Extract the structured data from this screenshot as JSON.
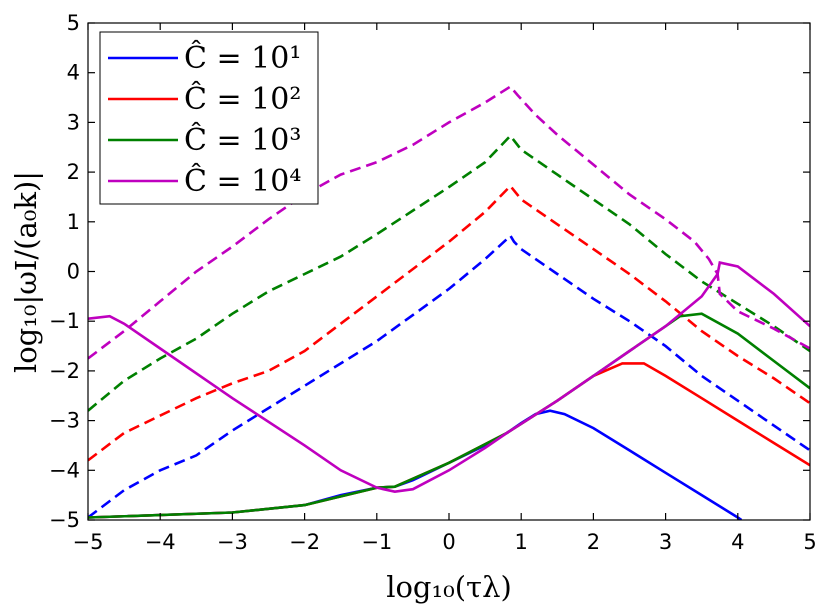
{
  "chart_data": {
    "type": "line",
    "title": "",
    "xlabel": "log₁₀(τλ)",
    "ylabel": "log₁₀|ωI/(a₀k)|",
    "xlim": [
      -5,
      5
    ],
    "ylim": [
      -5,
      5
    ],
    "xticks": [
      "−5",
      "−4",
      "−3",
      "−2",
      "−1",
      "0",
      "1",
      "2",
      "3",
      "4",
      "5"
    ],
    "yticks": [
      "−5",
      "−4",
      "−3",
      "−2",
      "−1",
      "0",
      "1",
      "2",
      "3",
      "4",
      "5"
    ],
    "grid": false,
    "legend_position": "top-left",
    "series": [
      {
        "name": "Ĉ = 10¹",
        "color": "#0000ff",
        "solid": [
          [
            -5,
            -4.95
          ],
          [
            -4,
            -4.9
          ],
          [
            -3,
            -4.85
          ],
          [
            -2,
            -4.7
          ],
          [
            -1.5,
            -4.5
          ],
          [
            -1,
            -4.35
          ],
          [
            -0.75,
            -4.33
          ],
          [
            -0.5,
            -4.2
          ],
          [
            0,
            -3.85
          ],
          [
            0.5,
            -3.5
          ],
          [
            0.8,
            -3.25
          ],
          [
            1,
            -3.05
          ],
          [
            1.2,
            -2.87
          ],
          [
            1.4,
            -2.8
          ],
          [
            1.6,
            -2.87
          ],
          [
            2,
            -3.15
          ],
          [
            2.5,
            -3.6
          ],
          [
            3,
            -4.05
          ],
          [
            3.5,
            -4.5
          ],
          [
            4,
            -4.95
          ],
          [
            4.05,
            -5
          ]
        ],
        "dashed": [
          [
            -5,
            -4.95
          ],
          [
            -4.5,
            -4.4
          ],
          [
            -4,
            -4.0
          ],
          [
            -3.5,
            -3.7
          ],
          [
            -3,
            -3.2
          ],
          [
            -2,
            -2.3
          ],
          [
            -1,
            -1.4
          ],
          [
            0,
            -0.35
          ],
          [
            0.5,
            0.25
          ],
          [
            0.8,
            0.65
          ],
          [
            0.85,
            0.72
          ],
          [
            0.9,
            0.6
          ],
          [
            1,
            0.45
          ],
          [
            1.5,
            -0.05
          ],
          [
            2,
            -0.55
          ],
          [
            2.5,
            -1.0
          ],
          [
            3,
            -1.5
          ],
          [
            3.5,
            -2.1
          ],
          [
            4,
            -2.6
          ],
          [
            4.5,
            -3.1
          ],
          [
            5,
            -3.6
          ]
        ]
      },
      {
        "name": "Ĉ = 10²",
        "color": "#ff0000",
        "solid": [
          [
            -5,
            -4.95
          ],
          [
            -3,
            -4.85
          ],
          [
            -2,
            -4.7
          ],
          [
            -1,
            -4.35
          ],
          [
            -0.75,
            -4.33
          ],
          [
            0,
            -3.85
          ],
          [
            0.8,
            -3.25
          ],
          [
            1.5,
            -2.6
          ],
          [
            2,
            -2.1
          ],
          [
            2.4,
            -1.85
          ],
          [
            2.7,
            -1.85
          ],
          [
            3,
            -2.1
          ],
          [
            3.5,
            -2.55
          ],
          [
            4,
            -3.0
          ],
          [
            4.5,
            -3.45
          ],
          [
            5,
            -3.9
          ]
        ],
        "dashed": [
          [
            -5,
            -3.8
          ],
          [
            -4.5,
            -3.25
          ],
          [
            -4,
            -2.9
          ],
          [
            -3.5,
            -2.55
          ],
          [
            -3,
            -2.25
          ],
          [
            -2.5,
            -2.0
          ],
          [
            -2,
            -1.6
          ],
          [
            -1,
            -0.5
          ],
          [
            0,
            0.6
          ],
          [
            0.5,
            1.2
          ],
          [
            0.85,
            1.72
          ],
          [
            1,
            1.45
          ],
          [
            1.5,
            0.95
          ],
          [
            2,
            0.45
          ],
          [
            2.5,
            -0.05
          ],
          [
            3,
            -0.6
          ],
          [
            3.5,
            -1.2
          ],
          [
            4,
            -1.7
          ],
          [
            4.5,
            -2.15
          ],
          [
            5,
            -2.65
          ]
        ]
      },
      {
        "name": "Ĉ = 10³",
        "color": "#008000",
        "solid": [
          [
            -5,
            -4.95
          ],
          [
            -3,
            -4.85
          ],
          [
            -2,
            -4.7
          ],
          [
            -1,
            -4.35
          ],
          [
            -0.75,
            -4.33
          ],
          [
            0,
            -3.85
          ],
          [
            0.8,
            -3.25
          ],
          [
            1.5,
            -2.6
          ],
          [
            2,
            -2.1
          ],
          [
            2.5,
            -1.6
          ],
          [
            3,
            -1.1
          ],
          [
            3.2,
            -0.9
          ],
          [
            3.5,
            -0.85
          ],
          [
            4,
            -1.25
          ],
          [
            4.5,
            -1.8
          ],
          [
            5,
            -2.35
          ]
        ],
        "dashed": [
          [
            -5,
            -2.8
          ],
          [
            -4.5,
            -2.2
          ],
          [
            -4,
            -1.75
          ],
          [
            -3.5,
            -1.35
          ],
          [
            -3,
            -0.85
          ],
          [
            -2.5,
            -0.4
          ],
          [
            -2,
            -0.05
          ],
          [
            -1.5,
            0.3
          ],
          [
            -1,
            0.75
          ],
          [
            0,
            1.7
          ],
          [
            0.5,
            2.2
          ],
          [
            0.85,
            2.73
          ],
          [
            1,
            2.45
          ],
          [
            1.5,
            1.95
          ],
          [
            2,
            1.45
          ],
          [
            2.5,
            0.95
          ],
          [
            3,
            0.35
          ],
          [
            3.5,
            -0.2
          ],
          [
            4,
            -0.65
          ],
          [
            4.5,
            -1.1
          ],
          [
            5,
            -1.6
          ]
        ]
      },
      {
        "name": "Ĉ = 10⁴",
        "color": "#bf00bf",
        "solid": [
          [
            -5,
            -0.95
          ],
          [
            -4.7,
            -0.9
          ],
          [
            -4.5,
            -1.05
          ],
          [
            -4,
            -1.55
          ],
          [
            -3,
            -2.55
          ],
          [
            -2,
            -3.5
          ],
          [
            -1.5,
            -4.0
          ],
          [
            -1,
            -4.35
          ],
          [
            -0.75,
            -4.43
          ],
          [
            -0.5,
            -4.38
          ],
          [
            0,
            -4.0
          ],
          [
            0.5,
            -3.55
          ],
          [
            0.8,
            -3.25
          ],
          [
            1.5,
            -2.6
          ],
          [
            2,
            -2.1
          ],
          [
            2.5,
            -1.6
          ],
          [
            3,
            -1.1
          ],
          [
            3.5,
            -0.5
          ],
          [
            3.72,
            -0.05
          ],
          [
            3.75,
            0.18
          ],
          [
            4,
            0.1
          ],
          [
            4.5,
            -0.45
          ],
          [
            5,
            -1.1
          ]
        ],
        "dashed": [
          [
            -5,
            -1.75
          ],
          [
            -4.5,
            -1.2
          ],
          [
            -4,
            -0.6
          ],
          [
            -3.5,
            0.0
          ],
          [
            -3,
            0.5
          ],
          [
            -2.5,
            1.05
          ],
          [
            -2,
            1.55
          ],
          [
            -1.5,
            1.95
          ],
          [
            -1,
            2.2
          ],
          [
            -0.5,
            2.55
          ],
          [
            0,
            3.0
          ],
          [
            0.5,
            3.4
          ],
          [
            0.85,
            3.72
          ],
          [
            0.95,
            3.55
          ],
          [
            1.2,
            3.15
          ],
          [
            1.5,
            2.75
          ],
          [
            2,
            2.15
          ],
          [
            2.5,
            1.55
          ],
          [
            3,
            1.05
          ],
          [
            3.4,
            0.6
          ],
          [
            3.6,
            0.25
          ],
          [
            3.72,
            -0.05
          ],
          [
            3.75,
            -0.45
          ],
          [
            4,
            -0.8
          ],
          [
            4.5,
            -1.15
          ],
          [
            5,
            -1.55
          ]
        ]
      }
    ]
  }
}
